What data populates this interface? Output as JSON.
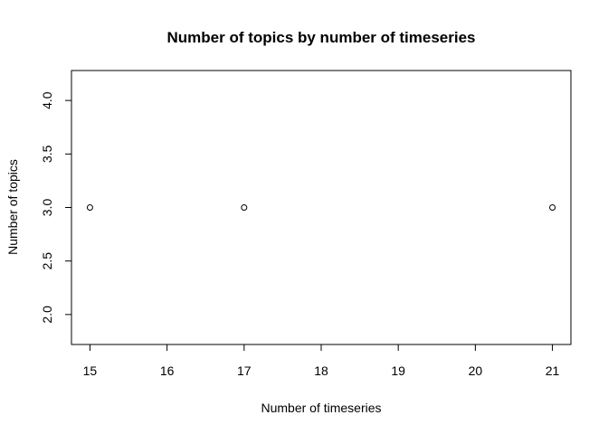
{
  "chart_data": {
    "type": "scatter",
    "title": "Number of topics by number of timeseries",
    "xlabel": "Number of timeseries",
    "ylabel": "Number of topics",
    "x": [
      15,
      17,
      21
    ],
    "y": [
      3,
      3,
      3
    ],
    "xlim": [
      14.76,
      21.24
    ],
    "ylim": [
      1.72,
      4.28
    ],
    "xticks": [
      "15",
      "16",
      "17",
      "18",
      "19",
      "20",
      "21"
    ],
    "yticks": [
      "2.0",
      "2.5",
      "3.0",
      "3.5",
      "4.0"
    ],
    "grid": false,
    "legend": "none",
    "marker": "open-circle",
    "color": "#000000"
  }
}
